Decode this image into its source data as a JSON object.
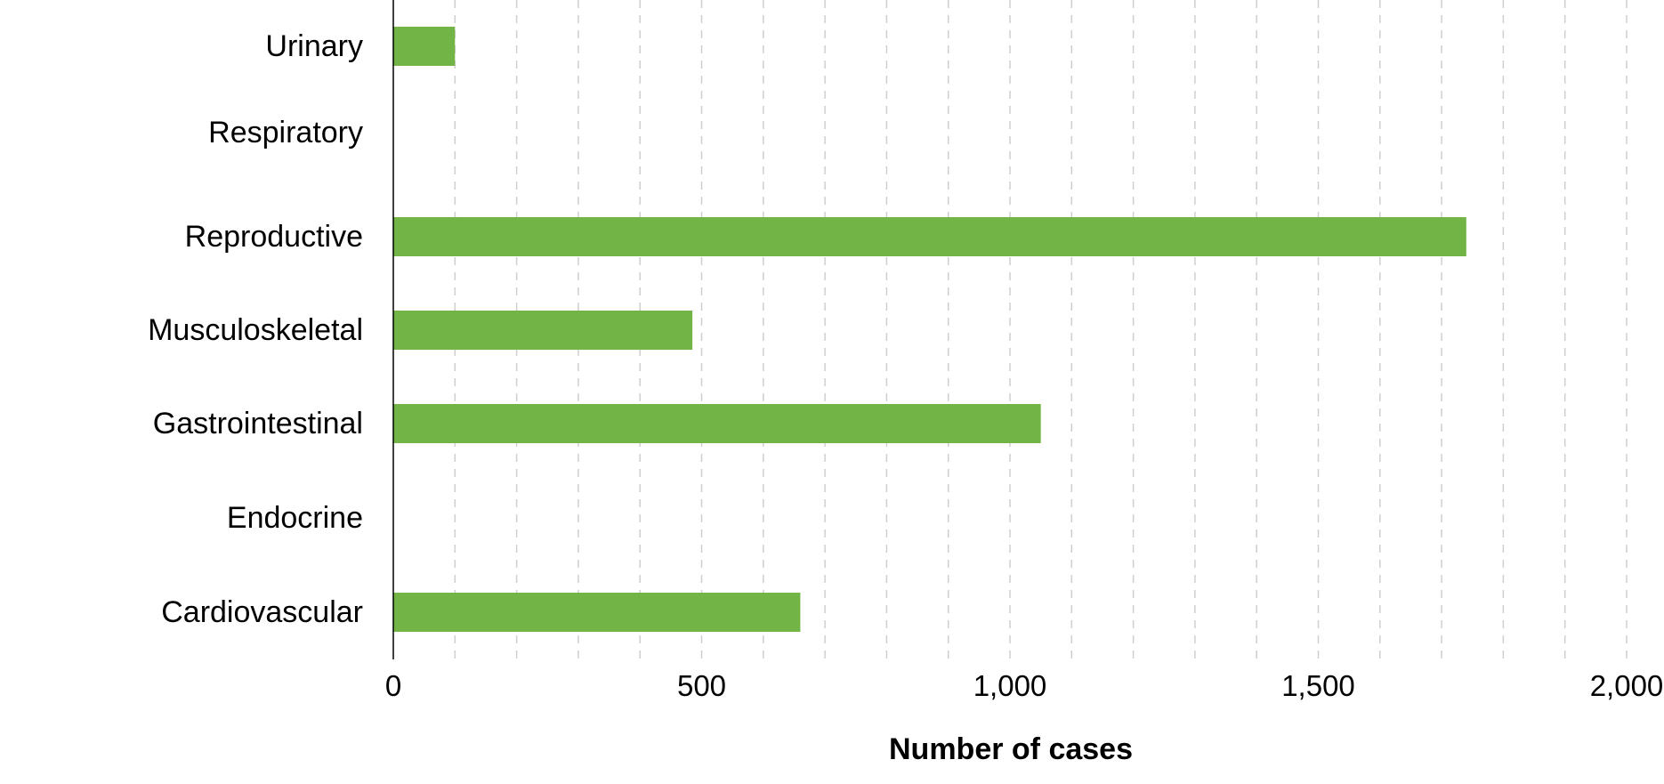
{
  "chart_data": {
    "type": "bar",
    "orientation": "horizontal",
    "categories": [
      "Urinary",
      "Respiratory",
      "Reproductive",
      "Musculoskeletal",
      "Gastrointestinal",
      "Endocrine",
      "Cardiovascular"
    ],
    "values": [
      100,
      0,
      1740,
      485,
      1050,
      0,
      660
    ],
    "xlabel": "Number of cases",
    "ylabel": "",
    "xlim": [
      0,
      2000
    ],
    "xticks": [
      0,
      500,
      1000,
      1500,
      2000
    ],
    "xtick_labels": [
      "0",
      "500",
      "1,000",
      "1,500",
      "2,000"
    ],
    "minor_grid_step": 100,
    "grid": true,
    "legend": false,
    "bar_color": "#72b446"
  }
}
